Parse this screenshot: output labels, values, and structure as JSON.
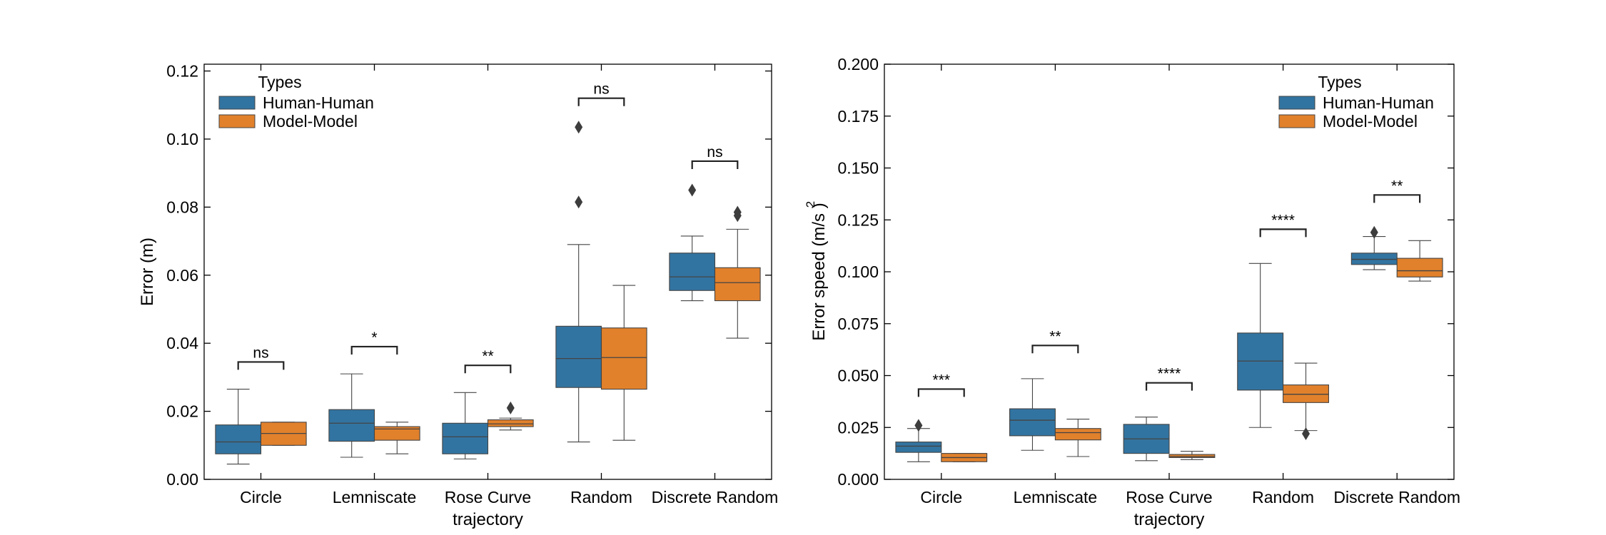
{
  "chart_data": [
    {
      "type": "box",
      "xlabel": "trajectory",
      "ylabel": "Error (m)",
      "ylabel_superscript": "",
      "ylim": [
        0,
        0.122
      ],
      "yticks": [
        "0.00",
        "0.02",
        "0.04",
        "0.06",
        "0.08",
        "0.10",
        "0.12"
      ],
      "categories": [
        "Circle",
        "Lemniscate",
        "Rose Curve",
        "Random",
        "Discrete Random"
      ],
      "legend": {
        "title": "Types",
        "position": "top-left"
      },
      "series": [
        {
          "name": "Human-Human",
          "color": "#3274a1",
          "boxes": [
            {
              "whislo": 0.0045,
              "q1": 0.0075,
              "med": 0.011,
              "q3": 0.016,
              "whishi": 0.0265,
              "fliers": []
            },
            {
              "whislo": 0.0065,
              "q1": 0.0112,
              "med": 0.0165,
              "q3": 0.0205,
              "whishi": 0.031,
              "fliers": []
            },
            {
              "whislo": 0.006,
              "q1": 0.0075,
              "med": 0.0125,
              "q3": 0.0165,
              "whishi": 0.0255,
              "fliers": []
            },
            {
              "whislo": 0.011,
              "q1": 0.027,
              "med": 0.0355,
              "q3": 0.045,
              "whishi": 0.069,
              "fliers": [
                0.0815,
                0.1035
              ]
            },
            {
              "whislo": 0.0525,
              "q1": 0.0555,
              "med": 0.0595,
              "q3": 0.0665,
              "whishi": 0.0715,
              "fliers": [
                0.085
              ]
            }
          ]
        },
        {
          "name": "Model-Model",
          "color": "#e1812c",
          "boxes": [
            {
              "whislo": 0.01,
              "q1": 0.01,
              "med": 0.0135,
              "q3": 0.0168,
              "whishi": 0.0168,
              "fliers": []
            },
            {
              "whislo": 0.0075,
              "q1": 0.0115,
              "med": 0.0148,
              "q3": 0.0155,
              "whishi": 0.0168,
              "fliers": []
            },
            {
              "whislo": 0.0145,
              "q1": 0.0155,
              "med": 0.0163,
              "q3": 0.0175,
              "whishi": 0.018,
              "fliers": [
                0.021
              ]
            },
            {
              "whislo": 0.0115,
              "q1": 0.0265,
              "med": 0.0358,
              "q3": 0.0445,
              "whishi": 0.057,
              "fliers": []
            },
            {
              "whislo": 0.0415,
              "q1": 0.0525,
              "med": 0.0578,
              "q3": 0.0622,
              "whishi": 0.0735,
              "fliers": [
                0.0775,
                0.0785
              ]
            }
          ]
        }
      ],
      "annotations": [
        {
          "category": 0,
          "label": "ns",
          "y": 0.0345
        },
        {
          "category": 1,
          "label": "*",
          "y": 0.039
        },
        {
          "category": 2,
          "label": "**",
          "y": 0.0335
        },
        {
          "category": 3,
          "label": "ns",
          "y": 0.112
        },
        {
          "category": 4,
          "label": "ns",
          "y": 0.0935
        }
      ]
    },
    {
      "type": "box",
      "xlabel": "trajectory",
      "ylabel": "Error speed (m/s )",
      "ylabel_superscript": "2",
      "ylim": [
        0,
        0.2
      ],
      "yticks": [
        "0.000",
        "0.025",
        "0.050",
        "0.075",
        "0.100",
        "0.125",
        "0.150",
        "0.175",
        "0.200"
      ],
      "categories": [
        "Circle",
        "Lemniscate",
        "Rose Curve",
        "Random",
        "Discrete Random"
      ],
      "legend": {
        "title": "Types",
        "position": "top-right"
      },
      "series": [
        {
          "name": "Human-Human",
          "color": "#3274a1",
          "boxes": [
            {
              "whislo": 0.0085,
              "q1": 0.013,
              "med": 0.016,
              "q3": 0.018,
              "whishi": 0.0245,
              "fliers": [
                0.026
              ]
            },
            {
              "whislo": 0.014,
              "q1": 0.021,
              "med": 0.0285,
              "q3": 0.034,
              "whishi": 0.0485,
              "fliers": []
            },
            {
              "whislo": 0.009,
              "q1": 0.0125,
              "med": 0.0195,
              "q3": 0.0265,
              "whishi": 0.03,
              "fliers": []
            },
            {
              "whislo": 0.025,
              "q1": 0.043,
              "med": 0.057,
              "q3": 0.0705,
              "whishi": 0.104,
              "fliers": []
            },
            {
              "whislo": 0.101,
              "q1": 0.1035,
              "med": 0.106,
              "q3": 0.109,
              "whishi": 0.117,
              "fliers": [
                0.119
              ]
            }
          ]
        },
        {
          "name": "Model-Model",
          "color": "#e1812c",
          "boxes": [
            {
              "whislo": 0.0085,
              "q1": 0.0085,
              "med": 0.0105,
              "q3": 0.0125,
              "whishi": 0.0125,
              "fliers": []
            },
            {
              "whislo": 0.011,
              "q1": 0.019,
              "med": 0.0225,
              "q3": 0.0245,
              "whishi": 0.029,
              "fliers": []
            },
            {
              "whislo": 0.0095,
              "q1": 0.0105,
              "med": 0.011,
              "q3": 0.012,
              "whishi": 0.0135,
              "fliers": []
            },
            {
              "whislo": 0.0235,
              "q1": 0.037,
              "med": 0.041,
              "q3": 0.0455,
              "whishi": 0.056,
              "fliers": [
                0.022
              ]
            },
            {
              "whislo": 0.0955,
              "q1": 0.0975,
              "med": 0.1005,
              "q3": 0.1065,
              "whishi": 0.115,
              "fliers": []
            }
          ]
        }
      ],
      "annotations": [
        {
          "category": 0,
          "label": "***",
          "y": 0.0435
        },
        {
          "category": 1,
          "label": "**",
          "y": 0.0645
        },
        {
          "category": 2,
          "label": "****",
          "y": 0.0465
        },
        {
          "category": 3,
          "label": "****",
          "y": 0.1205
        },
        {
          "category": 4,
          "label": "**",
          "y": 0.137
        }
      ]
    }
  ]
}
